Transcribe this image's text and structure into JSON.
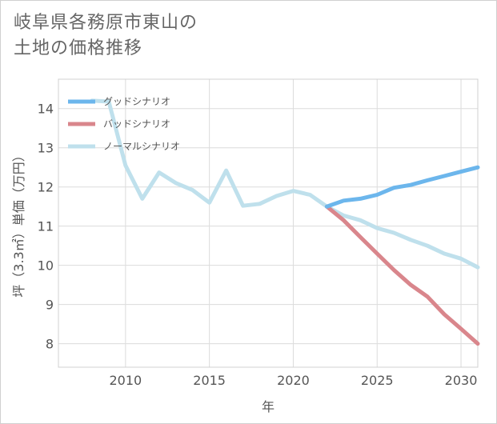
{
  "title_lines": [
    "岐阜県各務原市東山の",
    "土地の価格推移"
  ],
  "chart_data": {
    "type": "line",
    "title": "岐阜県各務原市東山の土地の価格推移",
    "xlabel": "年",
    "ylabel": "坪（3.3㎡）単価（万円）",
    "xlim": [
      2006,
      2031
    ],
    "ylim": [
      7.4,
      14.75
    ],
    "xticks": [
      2010,
      2015,
      2020,
      2025,
      2030
    ],
    "yticks": [
      8,
      9,
      10,
      11,
      12,
      13,
      14
    ],
    "grid": true,
    "legend_position": "top-left",
    "series": [
      {
        "name": "グッドシナリオ",
        "color": "#6cb6ec",
        "x": [
          2022,
          2023,
          2024,
          2025,
          2026,
          2027,
          2028,
          2029,
          2030,
          2031
        ],
        "y": [
          11.5,
          11.65,
          11.7,
          11.8,
          11.98,
          12.05,
          12.17,
          12.28,
          12.39,
          12.5
        ]
      },
      {
        "name": "バッドシナリオ",
        "color": "#d9868c",
        "x": [
          2022,
          2023,
          2024,
          2025,
          2026,
          2027,
          2028,
          2029,
          2030,
          2031
        ],
        "y": [
          11.5,
          11.15,
          10.72,
          10.3,
          9.88,
          9.5,
          9.2,
          8.75,
          8.38,
          8.0
        ]
      },
      {
        "name": "ノーマルシナリオ",
        "color": "#bfe0ec",
        "x": [
          2008,
          2009,
          2010,
          2011,
          2012,
          2013,
          2014,
          2015,
          2016,
          2017,
          2018,
          2019,
          2020,
          2021,
          2022,
          2023,
          2024,
          2025,
          2026,
          2027,
          2028,
          2029,
          2030,
          2031
        ],
        "y": [
          14.2,
          14.18,
          12.55,
          11.7,
          12.37,
          12.1,
          11.92,
          11.6,
          12.42,
          11.52,
          11.57,
          11.77,
          11.9,
          11.8,
          11.5,
          11.27,
          11.15,
          10.95,
          10.83,
          10.65,
          10.5,
          10.3,
          10.17,
          9.95
        ]
      }
    ]
  }
}
